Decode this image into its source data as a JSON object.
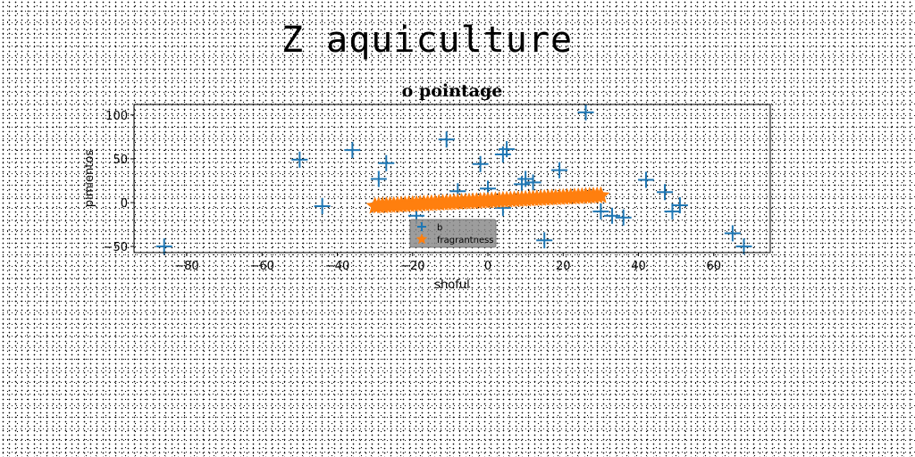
{
  "suptitle": "Z aquiculture",
  "chart_data": {
    "type": "scatter",
    "title": "o pointage",
    "xlabel": "shoful",
    "ylabel": "pimientos",
    "xlim": [
      -94,
      75
    ],
    "ylim": [
      -57,
      112
    ],
    "xticks": [
      -80,
      -60,
      -40,
      -20,
      0,
      20,
      40,
      60
    ],
    "yticks": [
      -50,
      0,
      50,
      100
    ],
    "xtick_labels": [
      "−80",
      "−60",
      "−40",
      "−20",
      "0",
      "20",
      "40",
      "60"
    ],
    "ytick_labels": [
      "−50",
      "0",
      "50",
      "100"
    ],
    "grid": false,
    "legend_position": "lower center",
    "series": [
      {
        "name": "b",
        "marker": "plus",
        "color": "#1f77b4",
        "points": [
          [
            -86,
            -50
          ],
          [
            -50,
            49
          ],
          [
            -44,
            -4
          ],
          [
            -36,
            60
          ],
          [
            -29,
            27
          ],
          [
            -27,
            45
          ],
          [
            -19,
            -15
          ],
          [
            -11,
            72
          ],
          [
            -8,
            13
          ],
          [
            -2,
            44
          ],
          [
            0,
            16
          ],
          [
            4,
            55
          ],
          [
            5,
            61
          ],
          [
            4,
            -6
          ],
          [
            9,
            21
          ],
          [
            10,
            27
          ],
          [
            12,
            23
          ],
          [
            15,
            -43
          ],
          [
            19,
            37
          ],
          [
            26,
            103
          ],
          [
            30,
            -10
          ],
          [
            33,
            -15
          ],
          [
            36,
            -17
          ],
          [
            42,
            26
          ],
          [
            47,
            12
          ],
          [
            49,
            -10
          ],
          [
            51,
            -3
          ],
          [
            65,
            -35
          ],
          [
            68,
            -50
          ]
        ]
      },
      {
        "name": "fragrantness",
        "marker": "star",
        "color": "#ff7f0e",
        "line": {
          "x_start": -30,
          "x_end": 30,
          "y_start": -4,
          "y_end": 8,
          "count": 61
        }
      }
    ]
  }
}
